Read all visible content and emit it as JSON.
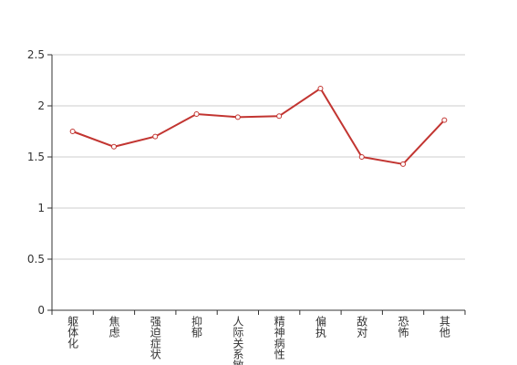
{
  "chart_data": {
    "type": "line",
    "categories": [
      "躯体化",
      "焦虑",
      "强迫症状",
      "抑郁",
      "人际关系敏感",
      "精神病性",
      "偏执",
      "敌对",
      "恐怖",
      "其他"
    ],
    "values": [
      1.75,
      1.6,
      1.7,
      1.92,
      1.89,
      1.9,
      2.17,
      1.5,
      1.43,
      1.86
    ],
    "color": "#c23531",
    "ylim": [
      0,
      2.5
    ],
    "yticks": [
      0,
      0.5,
      1,
      1.5,
      2,
      2.5
    ],
    "grid": true
  }
}
